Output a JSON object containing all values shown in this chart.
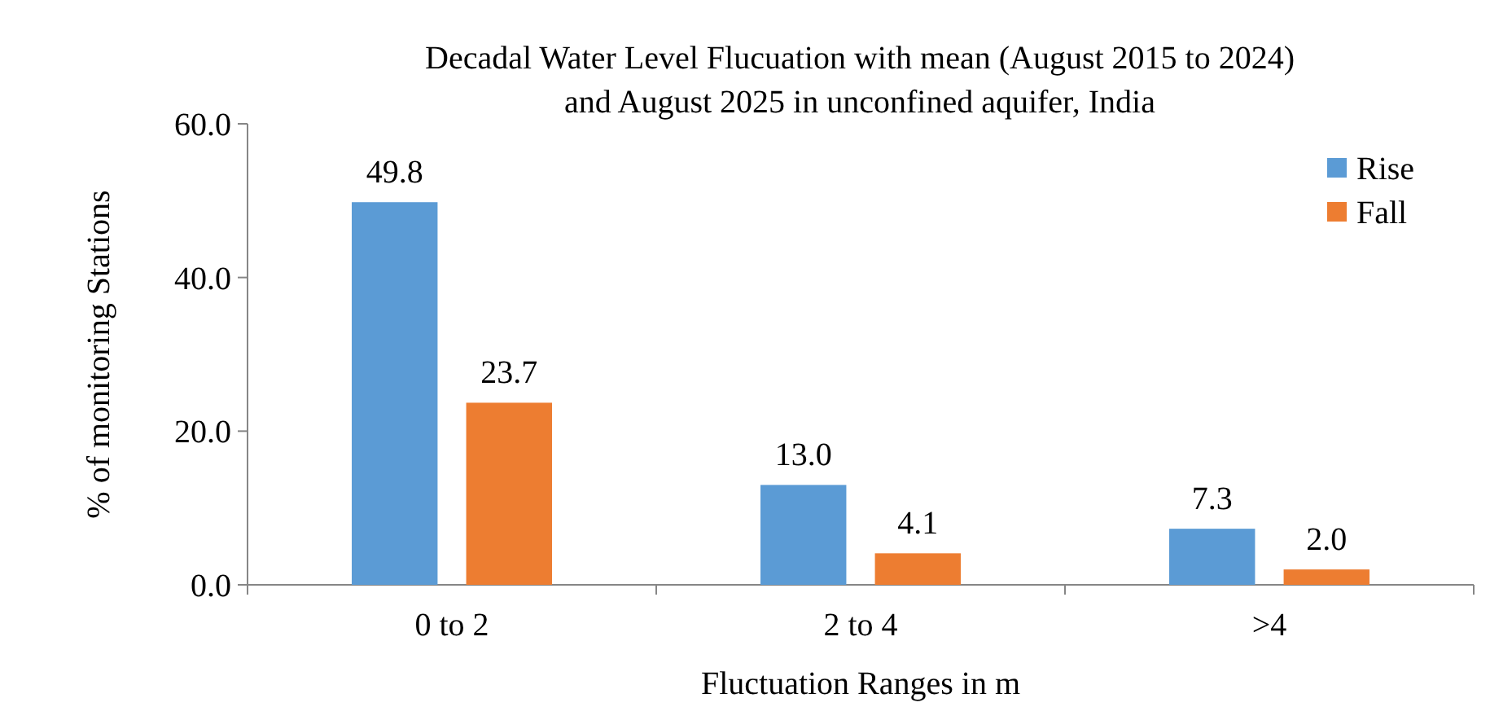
{
  "chart_data": {
    "type": "bar",
    "title": "Decadal Water Level Flucuation with mean (August 2015 to 2024)\nand August 2025 in unconfined aquifer, India",
    "xlabel": "Fluctuation Ranges in m",
    "ylabel": "% of monitoring Stations",
    "categories": [
      "0 to 2",
      "2 to 4",
      ">4"
    ],
    "series": [
      {
        "name": "Rise",
        "color": "#5b9bd5",
        "values": [
          49.8,
          13.0,
          7.3
        ],
        "value_labels": [
          "49.8",
          "13.0",
          "7.3"
        ]
      },
      {
        "name": "Fall",
        "color": "#ed7d31",
        "values": [
          23.7,
          4.1,
          2.0
        ],
        "value_labels": [
          "23.7",
          "4.1",
          "2.0"
        ]
      }
    ],
    "ylim": [
      0,
      60
    ],
    "yticks": [
      {
        "value": 0,
        "label": "0.0"
      },
      {
        "value": 20,
        "label": "20.0"
      },
      {
        "value": 40,
        "label": "40.0"
      },
      {
        "value": 60,
        "label": "60.0"
      }
    ],
    "grid": false,
    "legend": "top right"
  }
}
